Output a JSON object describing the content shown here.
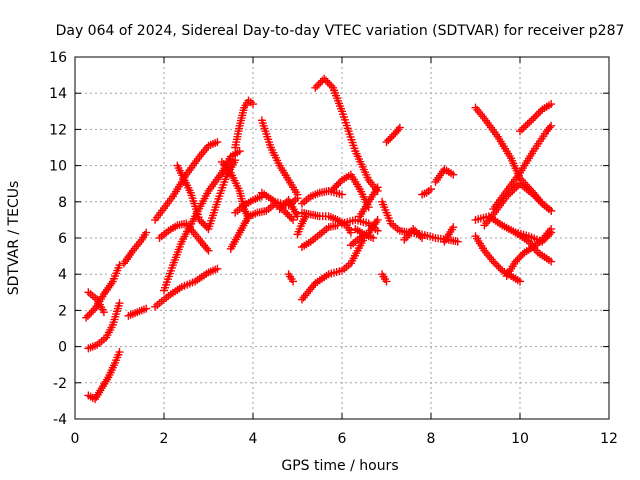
{
  "chart_data": {
    "type": "scatter",
    "title": "Day 064 of 2024, Sidereal Day-to-day VTEC variation (SDTVAR) for receiver p287",
    "xlabel": "GPS time / hours",
    "ylabel": "SDTVAR / TECUs",
    "xlim": [
      0,
      12
    ],
    "ylim": [
      -4,
      16
    ],
    "xticks": [
      0,
      2,
      4,
      6,
      8,
      10,
      12
    ],
    "yticks": [
      -4,
      -2,
      0,
      2,
      4,
      6,
      8,
      10,
      12,
      14,
      16
    ],
    "grid": true,
    "marker": "+",
    "color": "#ff0000",
    "series": [
      {
        "x": [
          0.3,
          0.45,
          0.6,
          0.75,
          0.9,
          1.0
        ],
        "y": [
          -2.7,
          -2.9,
          -2.3,
          -1.7,
          -0.9,
          -0.3
        ]
      },
      {
        "x": [
          0.3,
          0.5,
          0.7,
          0.85,
          1.0
        ],
        "y": [
          -0.1,
          0.1,
          0.5,
          1.2,
          2.4
        ]
      },
      {
        "x": [
          0.25,
          0.45,
          0.65,
          0.85,
          1.0
        ],
        "y": [
          1.6,
          2.1,
          2.9,
          3.6,
          4.5
        ]
      },
      {
        "x": [
          0.3,
          0.5,
          0.65
        ],
        "y": [
          3.0,
          2.6,
          1.9
        ]
      },
      {
        "x": [
          1.1,
          1.3,
          1.5,
          1.6
        ],
        "y": [
          4.6,
          5.3,
          5.9,
          6.3
        ]
      },
      {
        "x": [
          1.2,
          1.4,
          1.6
        ],
        "y": [
          1.7,
          1.9,
          2.1
        ]
      },
      {
        "x": [
          1.8,
          2.1,
          2.4,
          2.7,
          3.0,
          3.2
        ],
        "y": [
          2.2,
          2.8,
          3.3,
          3.6,
          4.1,
          4.3
        ]
      },
      {
        "x": [
          1.8,
          2.2,
          2.5,
          2.8,
          3.0,
          3.2
        ],
        "y": [
          7.0,
          8.3,
          9.5,
          10.5,
          11.1,
          11.3
        ]
      },
      {
        "x": [
          1.9,
          2.1,
          2.3,
          2.5,
          2.7,
          2.9,
          3.0
        ],
        "y": [
          6.0,
          6.4,
          6.7,
          6.8,
          6.2,
          5.6,
          5.3
        ]
      },
      {
        "x": [
          2.0,
          2.2,
          2.4,
          2.7,
          3.0,
          3.3,
          3.5,
          3.7
        ],
        "y": [
          3.1,
          4.5,
          5.8,
          7.2,
          8.6,
          9.6,
          10.5,
          10.8
        ]
      },
      {
        "x": [
          2.3,
          2.6,
          2.8,
          3.0,
          3.2,
          3.4,
          3.6
        ],
        "y": [
          10.0,
          8.5,
          7.0,
          6.5,
          8.0,
          9.4,
          10.3
        ]
      },
      {
        "x": [
          3.5,
          3.7,
          3.9,
          4.1,
          4.3,
          4.5,
          4.7,
          4.9
        ],
        "y": [
          5.4,
          6.3,
          7.2,
          7.4,
          7.5,
          7.9,
          7.5,
          7.0
        ]
      },
      {
        "x": [
          3.3,
          3.5,
          3.7,
          3.8,
          3.9
        ],
        "y": [
          10.2,
          9.6,
          8.6,
          7.6,
          7.1
        ]
      },
      {
        "x": [
          3.6,
          3.7,
          3.8,
          3.9,
          4.0
        ],
        "y": [
          11.0,
          12.2,
          13.2,
          13.6,
          13.4
        ]
      },
      {
        "x": [
          3.6,
          3.8,
          4.0,
          4.2
        ],
        "y": [
          7.4,
          7.8,
          8.1,
          8.3
        ]
      },
      {
        "x": [
          4.2,
          4.4,
          4.6,
          4.8,
          5.0
        ],
        "y": [
          12.5,
          11.0,
          10.0,
          9.2,
          8.4
        ]
      },
      {
        "x": [
          4.2,
          4.5,
          4.8,
          5.0
        ],
        "y": [
          8.5,
          8.0,
          7.8,
          8.2
        ]
      },
      {
        "x": [
          4.6,
          4.8,
          5.0
        ],
        "y": [
          7.6,
          8.1,
          7.2
        ]
      },
      {
        "x": [
          4.8,
          4.9
        ],
        "y": [
          4.0,
          3.6
        ]
      },
      {
        "x": [
          5.0,
          5.1,
          5.2
        ],
        "y": [
          6.2,
          6.8,
          7.3
        ]
      },
      {
        "x": [
          5.1,
          5.4,
          5.7,
          6.0,
          6.2,
          6.5
        ],
        "y": [
          2.6,
          3.5,
          4.0,
          4.2,
          4.6,
          6.0
        ]
      },
      {
        "x": [
          5.1,
          5.3,
          5.5,
          5.7,
          5.9,
          6.1,
          6.2
        ],
        "y": [
          7.4,
          7.3,
          7.2,
          7.2,
          7.0,
          6.7,
          6.3
        ]
      },
      {
        "x": [
          5.1,
          5.3,
          5.5,
          5.7,
          5.9
        ],
        "y": [
          5.5,
          5.8,
          6.2,
          6.6,
          6.7
        ]
      },
      {
        "x": [
          5.1,
          5.3,
          5.5,
          5.7,
          6.0
        ],
        "y": [
          7.9,
          8.3,
          8.5,
          8.6,
          8.4
        ]
      },
      {
        "x": [
          5.4,
          5.6,
          5.8,
          6.0,
          6.3,
          6.6,
          6.8
        ],
        "y": [
          14.3,
          14.8,
          14.3,
          13.0,
          10.8,
          9.2,
          8.6
        ]
      },
      {
        "x": [
          5.8,
          6.0,
          6.2,
          6.4,
          6.6
        ],
        "y": [
          8.7,
          9.2,
          9.5,
          8.7,
          7.7
        ]
      },
      {
        "x": [
          6.0,
          6.3,
          6.6,
          6.8
        ],
        "y": [
          6.8,
          7.0,
          6.8,
          6.4
        ]
      },
      {
        "x": [
          6.2,
          6.4,
          6.6,
          6.8
        ],
        "y": [
          5.6,
          6.0,
          6.3,
          7.0
        ]
      },
      {
        "x": [
          6.3,
          6.5,
          6.7
        ],
        "y": [
          6.5,
          6.2,
          6.0
        ]
      },
      {
        "x": [
          6.4,
          6.6,
          6.8
        ],
        "y": [
          7.2,
          8.0,
          8.8
        ]
      },
      {
        "x": [
          6.9,
          7.1,
          7.3,
          7.5,
          7.8,
          8.1,
          8.4,
          8.6
        ],
        "y": [
          8.0,
          6.8,
          6.4,
          6.3,
          6.2,
          6.0,
          5.9,
          5.8
        ]
      },
      {
        "x": [
          7.0,
          7.2,
          7.3
        ],
        "y": [
          11.3,
          11.8,
          12.1
        ]
      },
      {
        "x": [
          6.9,
          7.0
        ],
        "y": [
          4.0,
          3.6
        ]
      },
      {
        "x": [
          7.4,
          7.6,
          7.8
        ],
        "y": [
          5.9,
          6.5,
          6.0
        ]
      },
      {
        "x": [
          7.8,
          7.9,
          8.0
        ],
        "y": [
          8.4,
          8.5,
          8.7
        ]
      },
      {
        "x": [
          8.1,
          8.3,
          8.5
        ],
        "y": [
          9.1,
          9.8,
          9.5
        ]
      },
      {
        "x": [
          8.3,
          8.5
        ],
        "y": [
          5.8,
          6.6
        ]
      },
      {
        "x": [
          9.0,
          9.2,
          9.5,
          9.8,
          10.0,
          10.3,
          10.5,
          10.7
        ],
        "y": [
          13.2,
          12.6,
          11.6,
          10.4,
          9.3,
          8.5,
          7.9,
          7.5
        ]
      },
      {
        "x": [
          9.0,
          9.2,
          9.4,
          9.6,
          9.8,
          10.0
        ],
        "y": [
          6.1,
          5.3,
          4.7,
          4.2,
          3.9,
          3.6
        ]
      },
      {
        "x": [
          9.0,
          9.3,
          9.6,
          9.9,
          10.2,
          10.5,
          10.7
        ],
        "y": [
          7.0,
          7.2,
          6.7,
          6.3,
          6.1,
          5.8,
          6.3
        ]
      },
      {
        "x": [
          9.2,
          9.4,
          9.7,
          10.0,
          10.3,
          10.5,
          10.7
        ],
        "y": [
          6.7,
          7.3,
          8.3,
          9.0,
          8.4,
          7.9,
          7.5
        ]
      },
      {
        "x": [
          9.4,
          9.7,
          10.0,
          10.3,
          10.6,
          10.7
        ],
        "y": [
          7.6,
          8.6,
          9.6,
          10.8,
          11.9,
          12.2
        ]
      },
      {
        "x": [
          9.7,
          9.9,
          10.1,
          10.3,
          10.5,
          10.7
        ],
        "y": [
          3.9,
          4.7,
          5.2,
          5.5,
          5.9,
          6.5
        ]
      },
      {
        "x": [
          10.0,
          10.3,
          10.5,
          10.7
        ],
        "y": [
          11.9,
          12.6,
          13.1,
          13.4
        ]
      },
      {
        "x": [
          9.9,
          10.2,
          10.4,
          10.7
        ],
        "y": [
          6.3,
          5.8,
          5.2,
          4.7
        ]
      }
    ]
  }
}
